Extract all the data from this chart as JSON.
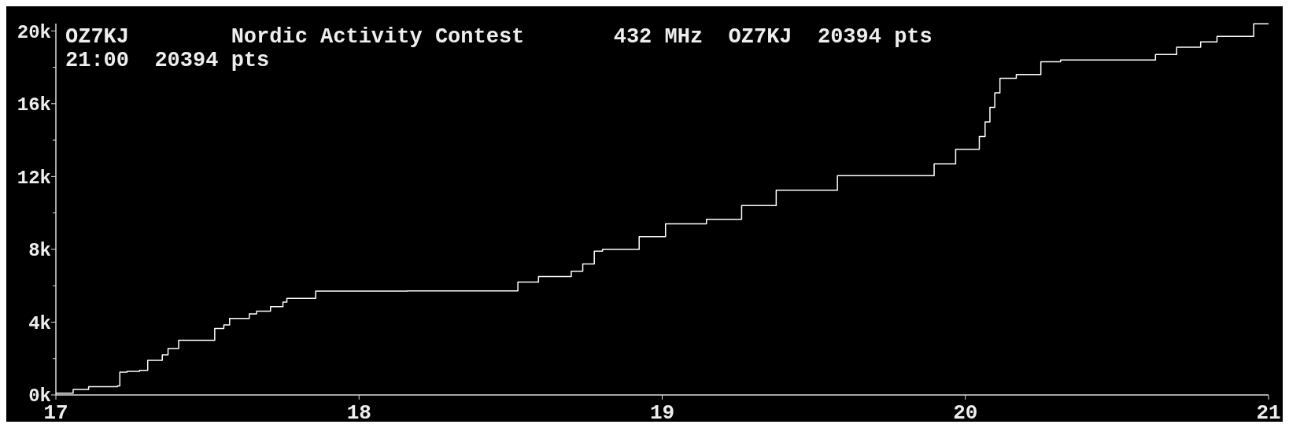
{
  "chart_data": {
    "type": "step",
    "title": "OZ7KJ        Nordic Activity Contest       432 MHz  OZ7KJ  20394 pts",
    "subtitle": "21:00  20394 pts",
    "x": [
      17.0,
      17.057,
      17.108,
      17.203,
      17.211,
      17.235,
      17.276,
      17.303,
      17.351,
      17.37,
      17.405,
      17.524,
      17.554,
      17.573,
      17.638,
      17.662,
      17.708,
      17.749,
      17.762,
      17.857,
      18.159,
      18.524,
      18.592,
      18.7,
      18.738,
      18.776,
      18.803,
      18.924,
      19.011,
      19.146,
      19.262,
      19.376,
      19.578,
      19.897,
      19.968,
      20.046,
      20.065,
      20.081,
      20.097,
      20.114,
      20.168,
      20.249,
      20.314,
      20.627,
      20.697,
      20.776,
      20.83,
      20.951,
      21.0
    ],
    "series": [
      {
        "color": "#ffffff",
        "values": [
          100,
          300,
          450,
          500,
          1250,
          1300,
          1350,
          1900,
          2200,
          2550,
          3000,
          3650,
          3850,
          4200,
          4450,
          4600,
          4850,
          5100,
          5300,
          5700,
          5720,
          6200,
          6500,
          6800,
          7200,
          7900,
          8000,
          8700,
          9400,
          9650,
          10400,
          11250,
          12050,
          12700,
          13500,
          14200,
          15000,
          15800,
          16600,
          17400,
          17600,
          18300,
          18400,
          18700,
          19100,
          19400,
          19700,
          20394,
          20394
        ]
      }
    ],
    "xlim": [
      17,
      21
    ],
    "xticks": [
      17,
      18,
      19,
      20,
      21
    ],
    "ylim": [
      0,
      20400
    ],
    "yticks": [
      {
        "value": 0,
        "label": "0k"
      },
      {
        "value": 2000,
        "label": null
      },
      {
        "value": 4000,
        "label": "4k"
      },
      {
        "value": 6000,
        "label": null
      },
      {
        "value": 8000,
        "label": "8k"
      },
      {
        "value": 10000,
        "label": null
      },
      {
        "value": 12000,
        "label": "12k"
      },
      {
        "value": 14000,
        "label": null
      },
      {
        "value": 16000,
        "label": "16k"
      },
      {
        "value": 18000,
        "label": null
      },
      {
        "value": 20000,
        "label": "20k"
      }
    ],
    "grid": false,
    "marker": "none",
    "line_style": "solid"
  }
}
